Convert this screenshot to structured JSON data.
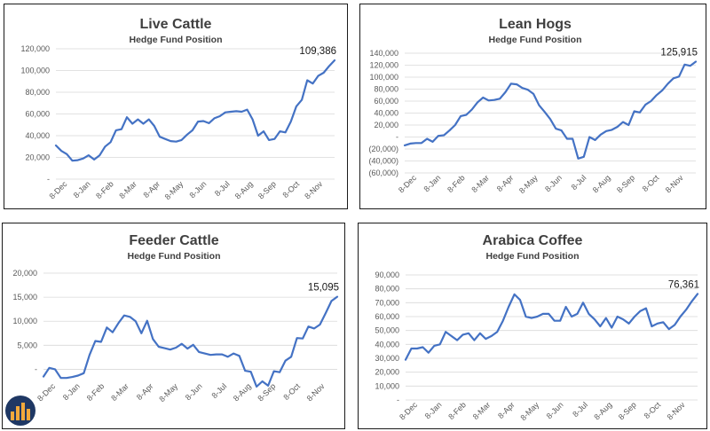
{
  "colors": {
    "series": "#4472c4",
    "grid": "#d9d9d9",
    "axis_text": "#595959",
    "title": "#3f3f3f",
    "border": "#1a1a1a"
  },
  "chart_data": [
    {
      "type": "line",
      "title": "Live Cattle",
      "subtitle": "Hedge Fund Position",
      "xlabel": "",
      "ylabel": "",
      "ylim": [
        0,
        120000
      ],
      "yticks": [
        0,
        20000,
        40000,
        60000,
        80000,
        100000,
        120000
      ],
      "ytick_labels": [
        "-",
        "20,000",
        "40,000",
        "60,000",
        "80,000",
        "100,000",
        "120,000"
      ],
      "xtick_labels": [
        "8-Dec",
        "8-Jan",
        "8-Feb",
        "8-Mar",
        "8-Apr",
        "8-May",
        "8-Jun",
        "8-Jul",
        "8-Aug",
        "8-Sep",
        "8-Oct",
        "8-Nov"
      ],
      "grid": true,
      "series": [
        {
          "values": [
            31000,
            26000,
            23000,
            17000,
            17500,
            19000,
            22000,
            18000,
            22000,
            30000,
            34000,
            45000,
            46000,
            57000,
            51000,
            55000,
            51000,
            55000,
            49000,
            39000,
            37000,
            35000,
            34500,
            36000,
            41000,
            45000,
            53000,
            53500,
            51500,
            56000,
            58000,
            61500,
            62000,
            62500,
            62000,
            64000,
            55000,
            40000,
            44000,
            36000,
            37000,
            44000,
            43000,
            53000,
            67000,
            73000,
            91000,
            88000,
            95000,
            98000,
            104000,
            109386
          ]
        }
      ],
      "last_label": "109,386"
    },
    {
      "type": "line",
      "title": "Lean Hogs",
      "subtitle": "Hedge Fund Position",
      "xlabel": "",
      "ylabel": "",
      "ylim": [
        -60000,
        140000
      ],
      "yticks": [
        -60000,
        -40000,
        -20000,
        0,
        20000,
        40000,
        60000,
        80000,
        100000,
        120000,
        140000
      ],
      "ytick_labels": [
        "(60,000)",
        "(40,000)",
        "(20,000)",
        "-",
        "20,000",
        "40,000",
        "60,000",
        "80,000",
        "100,000",
        "120,000",
        "140,000"
      ],
      "xtick_labels": [
        "8-Dec",
        "8-Jan",
        "8-Feb",
        "8-Mar",
        "8-Apr",
        "8-May",
        "8-Jun",
        "8-Jul",
        "8-Aug",
        "8-Sep",
        "8-Oct",
        "8-Nov"
      ],
      "grid": true,
      "series": [
        {
          "values": [
            -14000,
            -11000,
            -10000,
            -10000,
            -3000,
            -8000,
            2000,
            3000,
            11000,
            20000,
            35000,
            37000,
            46000,
            58000,
            66000,
            61000,
            62000,
            64000,
            75000,
            89000,
            88000,
            82000,
            79000,
            72000,
            53000,
            42000,
            30000,
            14000,
            11000,
            -3000,
            -3000,
            -36000,
            -33000,
            0,
            -5000,
            4000,
            10000,
            12000,
            17000,
            25000,
            20000,
            43000,
            41000,
            54000,
            60000,
            70000,
            78000,
            89000,
            98000,
            101000,
            121000,
            119000,
            125915
          ]
        }
      ],
      "last_label": "125,915"
    },
    {
      "type": "line",
      "title": "Feeder Cattle",
      "subtitle": "Hedge Fund Position",
      "xlabel": "",
      "ylabel": "",
      "ylim": [
        -2500,
        20000
      ],
      "yticks": [
        0,
        5000,
        10000,
        15000,
        20000
      ],
      "ytick_labels": [
        "-",
        "5,000",
        "10,000",
        "15,000",
        "20,000"
      ],
      "xtick_labels": [
        "8-Dec",
        "8-Jan",
        "8-Feb",
        "8-Mar",
        "8-Apr",
        "8-May",
        "8-Jun",
        "8-Jul",
        "8-Aug",
        "8-Sep",
        "8-Oct",
        "8-Nov"
      ],
      "grid": true,
      "series": [
        {
          "values": [
            -1500,
            300,
            0,
            -1800,
            -1800,
            -1600,
            -1300,
            -800,
            3000,
            5900,
            5700,
            8700,
            7700,
            9600,
            11200,
            10900,
            10000,
            7500,
            10100,
            6300,
            4700,
            4400,
            4100,
            4500,
            5300,
            4300,
            5100,
            3600,
            3300,
            3000,
            3100,
            3100,
            2600,
            3300,
            2800,
            -300,
            -500,
            -3600,
            -2500,
            -3400,
            -400,
            -600,
            1800,
            2600,
            6500,
            6400,
            8900,
            8500,
            9300,
            11700,
            14200,
            15095
          ]
        }
      ],
      "last_label": "15,095"
    },
    {
      "type": "line",
      "title": "Arabica Coffee",
      "subtitle": "Hedge Fund Position",
      "xlabel": "",
      "ylabel": "",
      "ylim": [
        0,
        90000
      ],
      "yticks": [
        0,
        10000,
        20000,
        30000,
        40000,
        50000,
        60000,
        70000,
        80000,
        90000
      ],
      "ytick_labels": [
        "-",
        "10,000",
        "20,000",
        "30,000",
        "40,000",
        "50,000",
        "60,000",
        "70,000",
        "80,000",
        "90,000"
      ],
      "xtick_labels": [
        "8-Dec",
        "8-Jan",
        "8-Feb",
        "8-Mar",
        "8-Apr",
        "8-May",
        "8-Jun",
        "8-Jul",
        "8-Aug",
        "8-Sep",
        "8-Oct",
        "8-Nov"
      ],
      "grid": true,
      "series": [
        {
          "values": [
            29000,
            37000,
            37000,
            38000,
            34000,
            39000,
            40000,
            49000,
            46000,
            43000,
            47000,
            48000,
            43000,
            48000,
            44000,
            46000,
            49000,
            57000,
            67000,
            76000,
            72000,
            60000,
            59000,
            60000,
            62000,
            62000,
            57000,
            57000,
            67000,
            60000,
            62000,
            70000,
            62000,
            58000,
            53000,
            59000,
            52000,
            60000,
            58000,
            55000,
            60000,
            64000,
            66000,
            53000,
            55000,
            56000,
            51000,
            54000,
            60000,
            65000,
            71000,
            76361
          ]
        }
      ],
      "last_label": "76,361"
    }
  ]
}
